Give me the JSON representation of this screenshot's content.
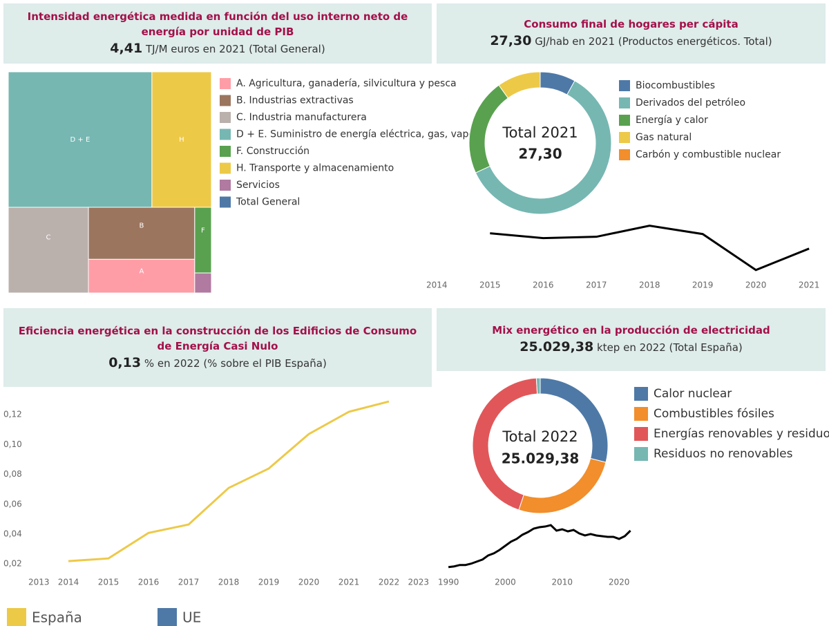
{
  "chart_data": [
    {
      "type": "treemap",
      "title": "Intensidad energética medida en función del uso interno neto de energía por unidad de PIB",
      "kpi": "4,41",
      "kpi_text": "TJ/M euros en 2021 (Total General)",
      "categories": [
        "A. Agricultura, ganadería, silvicultura y pesca",
        "B. Industrias extractivas",
        "C. Industria manufacturera",
        "D + E. Suministro de energía eléctrica, gas, vapor",
        "F. Construcción",
        "H. Transporte y almacenamiento",
        "Servicios",
        "Total General"
      ],
      "labels": [
        "A",
        "B",
        "C",
        "D + E",
        "F",
        "H",
        null,
        null
      ],
      "values": [
        7.5,
        11.6,
        14.4,
        40.8,
        2.3,
        16.9,
        0.7,
        null
      ],
      "colors": [
        "#ff9da7",
        "#9c755f",
        "#bab0ac",
        "#76b7b2",
        "#59a14f",
        "#edc948",
        "#b07aa1",
        "#4e79a7"
      ]
    },
    {
      "type": "donut",
      "title": "Consumo final de hogares per cápita",
      "kpi": "27,30",
      "kpi_text": "GJ/hab en 2021 (Productos energéticos. Total)",
      "center_label": "Total 2021",
      "center_value": "27,30",
      "categories": [
        "Biocombustibles",
        "Derivados del petróleo",
        "Energía y calor",
        "Gas natural",
        "Carbón y combustible nuclear"
      ],
      "values": [
        2.2,
        16.4,
        6.0,
        2.7,
        0.0
      ],
      "colors": [
        "#4e79a7",
        "#76b7b2",
        "#59a14f",
        "#edc948",
        "#f28e2b"
      ],
      "trend": {
        "x": [
          2015,
          2016,
          2017,
          2018,
          2019,
          2020,
          2021
        ],
        "values": [
          28.09,
          27.84,
          27.91,
          28.48,
          28.05,
          26.2,
          27.3
        ],
        "xlim": [
          2014.1,
          2021.18
        ],
        "xticks": [
          2014,
          2015,
          2016,
          2017,
          2018,
          2019,
          2020,
          2021
        ],
        "ylim": [
          25.8,
          29.0
        ],
        "color": "#000000"
      }
    },
    {
      "type": "line",
      "title": "Eficiencia energética en la construcción de los Edificios de Consumo de Energía Casi Nulo",
      "kpi": "0,13",
      "kpi_text": "% en 2022 (% sobre el PIB España)",
      "x": [
        2014,
        2015,
        2016,
        2017,
        2018,
        2019,
        2020,
        2021,
        2022
      ],
      "series": [
        {
          "name": "España",
          "color": "#edc948",
          "values": [
            0.0219,
            0.0237,
            0.0408,
            0.0464,
            0.0709,
            0.0839,
            0.107,
            0.1219,
            0.1288
          ]
        },
        {
          "name": "UE",
          "color": "#4e79a7",
          "values": [
            null,
            null,
            null,
            null,
            null,
            null,
            null,
            null,
            null
          ]
        }
      ],
      "xlim": [
        2013,
        2023
      ],
      "xticks": [
        2013,
        2014,
        2015,
        2016,
        2017,
        2018,
        2019,
        2020,
        2021,
        2022,
        2023
      ],
      "ylim": [
        0.015,
        0.133
      ],
      "yticks": [
        {
          "value": 0.02,
          "label": "0,02"
        },
        {
          "value": 0.04,
          "label": "0,04"
        },
        {
          "value": 0.06,
          "label": "0,06"
        },
        {
          "value": 0.08,
          "label": "0,08"
        },
        {
          "value": 0.1,
          "label": "0,10"
        },
        {
          "value": 0.12,
          "label": "0,12"
        }
      ]
    },
    {
      "type": "donut",
      "title": "Mix energético en la producción de electricidad",
      "kpi": "25.029,38",
      "kpi_text": "ktep en 2022 (Total España)",
      "center_label": "Total 2022",
      "center_value": "25.029,38",
      "categories": [
        "Calor nuclear",
        "Combustibles fósiles",
        "Energías renovables y residuos",
        "Residuos no renovables"
      ],
      "values": [
        7250,
        6550,
        11000,
        230
      ],
      "colors": [
        "#4e79a7",
        "#f28e2b",
        "#e15759",
        "#76b7b2"
      ],
      "trend": {
        "x": [
          1990,
          1991,
          1992,
          1993,
          1994,
          1995,
          1996,
          1997,
          1998,
          1999,
          2000,
          2001,
          2002,
          2003,
          2004,
          2005,
          2006,
          2007,
          2008,
          2009,
          2010,
          2011,
          2012,
          2013,
          2014,
          2015,
          2016,
          2017,
          2018,
          2019,
          2020,
          2021,
          2022
        ],
        "values": [
          11780,
          12030,
          12530,
          12530,
          13030,
          13780,
          14530,
          16030,
          16780,
          18030,
          19530,
          21030,
          22030,
          23530,
          24530,
          25780,
          26280,
          26530,
          27030,
          25030,
          25530,
          24780,
          25280,
          24030,
          23280,
          23780,
          23280,
          23030,
          22780,
          22780,
          22030,
          23030,
          25029.38
        ],
        "xlim": [
          1989.5,
          2022.9
        ],
        "xticks": [
          1990,
          2000,
          2010,
          2020
        ],
        "ylim": [
          10700,
          28300
        ],
        "color": "#000000"
      }
    }
  ]
}
